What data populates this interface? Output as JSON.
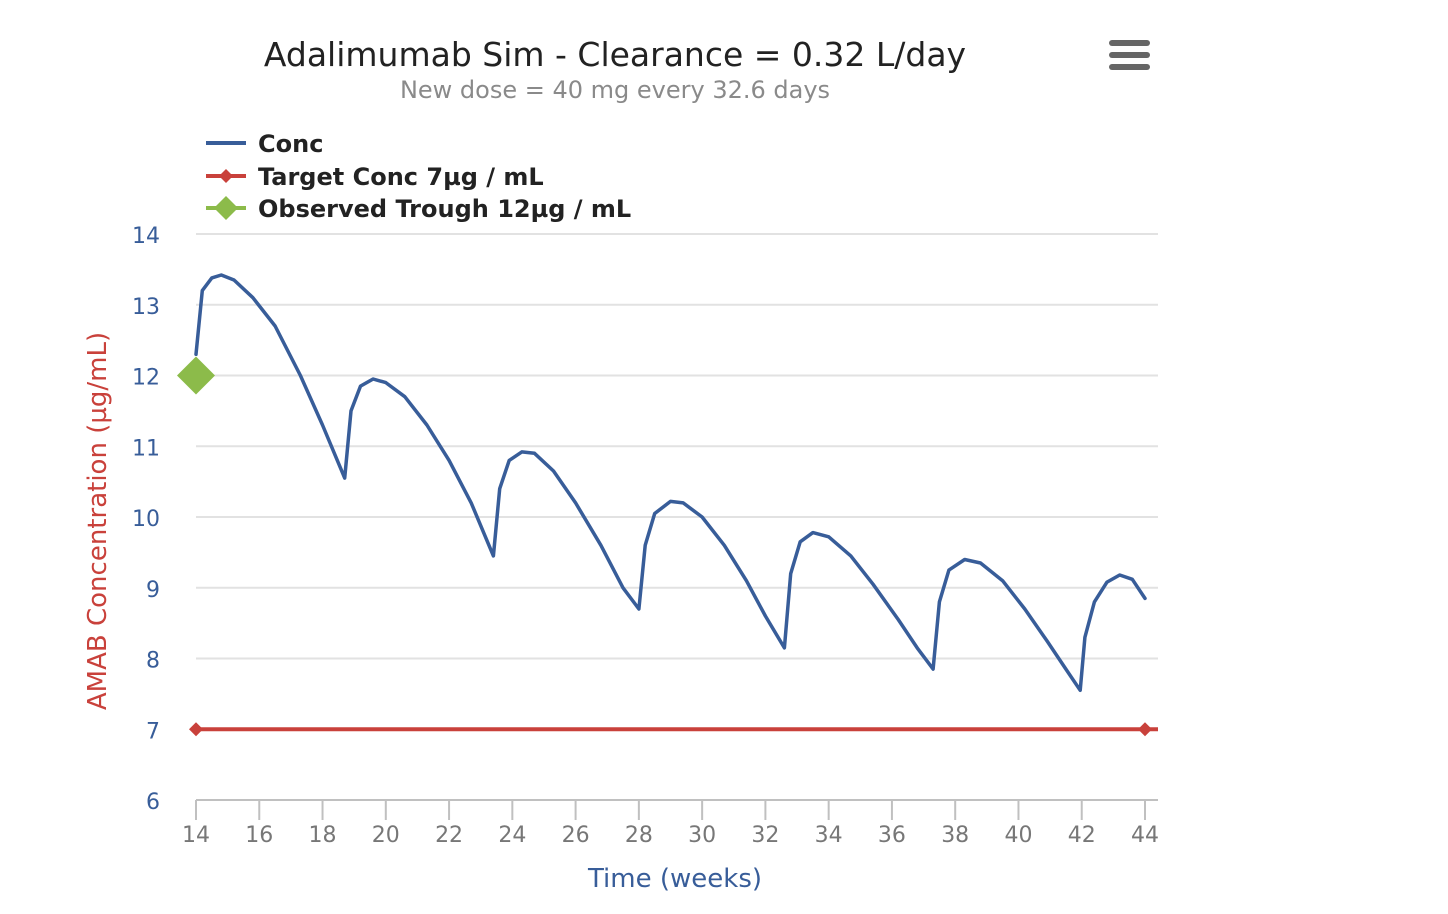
{
  "chart_data": {
    "type": "line",
    "title": "Adalimumab Sim - Clearance = 0.32 L/day",
    "subtitle": "New dose = 40 mg every 32.6 days",
    "xlabel": "Time (weeks)",
    "ylabel": "AMAB Concentration (µg/mL)",
    "xlim": [
      14,
      44
    ],
    "ylim": [
      6,
      14
    ],
    "x_ticks": [
      14,
      16,
      18,
      20,
      22,
      24,
      26,
      28,
      30,
      32,
      34,
      36,
      38,
      40,
      42,
      44
    ],
    "y_ticks": [
      6,
      7,
      8,
      9,
      10,
      11,
      12,
      13,
      14
    ],
    "grid": true,
    "legend": "top-left",
    "series": [
      {
        "name": "Conc",
        "color": "#385d99",
        "points": [
          [
            14.0,
            12.3
          ],
          [
            14.2,
            13.2
          ],
          [
            14.5,
            13.38
          ],
          [
            14.8,
            13.42
          ],
          [
            15.2,
            13.35
          ],
          [
            15.8,
            13.1
          ],
          [
            16.5,
            12.7
          ],
          [
            17.3,
            12.0
          ],
          [
            18.0,
            11.3
          ],
          [
            18.7,
            10.55
          ],
          [
            18.9,
            11.5
          ],
          [
            19.2,
            11.85
          ],
          [
            19.6,
            11.95
          ],
          [
            20.0,
            11.9
          ],
          [
            20.6,
            11.7
          ],
          [
            21.3,
            11.3
          ],
          [
            22.0,
            10.8
          ],
          [
            22.7,
            10.2
          ],
          [
            23.4,
            9.45
          ],
          [
            23.6,
            10.4
          ],
          [
            23.9,
            10.8
          ],
          [
            24.3,
            10.92
          ],
          [
            24.7,
            10.9
          ],
          [
            25.3,
            10.65
          ],
          [
            26.0,
            10.2
          ],
          [
            26.8,
            9.6
          ],
          [
            27.5,
            9.0
          ],
          [
            28.0,
            8.7
          ],
          [
            28.2,
            9.6
          ],
          [
            28.5,
            10.05
          ],
          [
            29.0,
            10.22
          ],
          [
            29.4,
            10.2
          ],
          [
            30.0,
            10.0
          ],
          [
            30.7,
            9.6
          ],
          [
            31.4,
            9.1
          ],
          [
            32.0,
            8.6
          ],
          [
            32.6,
            8.15
          ],
          [
            32.8,
            9.2
          ],
          [
            33.1,
            9.65
          ],
          [
            33.5,
            9.78
          ],
          [
            34.0,
            9.72
          ],
          [
            34.7,
            9.45
          ],
          [
            35.4,
            9.05
          ],
          [
            36.2,
            8.55
          ],
          [
            36.8,
            8.15
          ],
          [
            37.3,
            7.85
          ],
          [
            37.5,
            8.8
          ],
          [
            37.8,
            9.25
          ],
          [
            38.3,
            9.4
          ],
          [
            38.8,
            9.35
          ],
          [
            39.5,
            9.1
          ],
          [
            40.2,
            8.7
          ],
          [
            40.9,
            8.25
          ],
          [
            41.5,
            7.85
          ],
          [
            41.95,
            7.55
          ],
          [
            42.1,
            8.3
          ],
          [
            42.4,
            8.8
          ],
          [
            42.8,
            9.08
          ],
          [
            43.2,
            9.18
          ],
          [
            43.6,
            9.12
          ],
          [
            44.0,
            8.85
          ]
        ]
      },
      {
        "name": "Target Conc 7µg / mL",
        "color": "#c9413b",
        "points": [
          [
            14,
            7
          ],
          [
            44,
            7
          ]
        ]
      },
      {
        "name": "Observed Trough 12µg / mL",
        "color": "#8cbb4a",
        "points": [
          [
            14,
            12
          ]
        ]
      }
    ]
  },
  "ui": {
    "menu_icon": "hamburger-menu-icon"
  }
}
